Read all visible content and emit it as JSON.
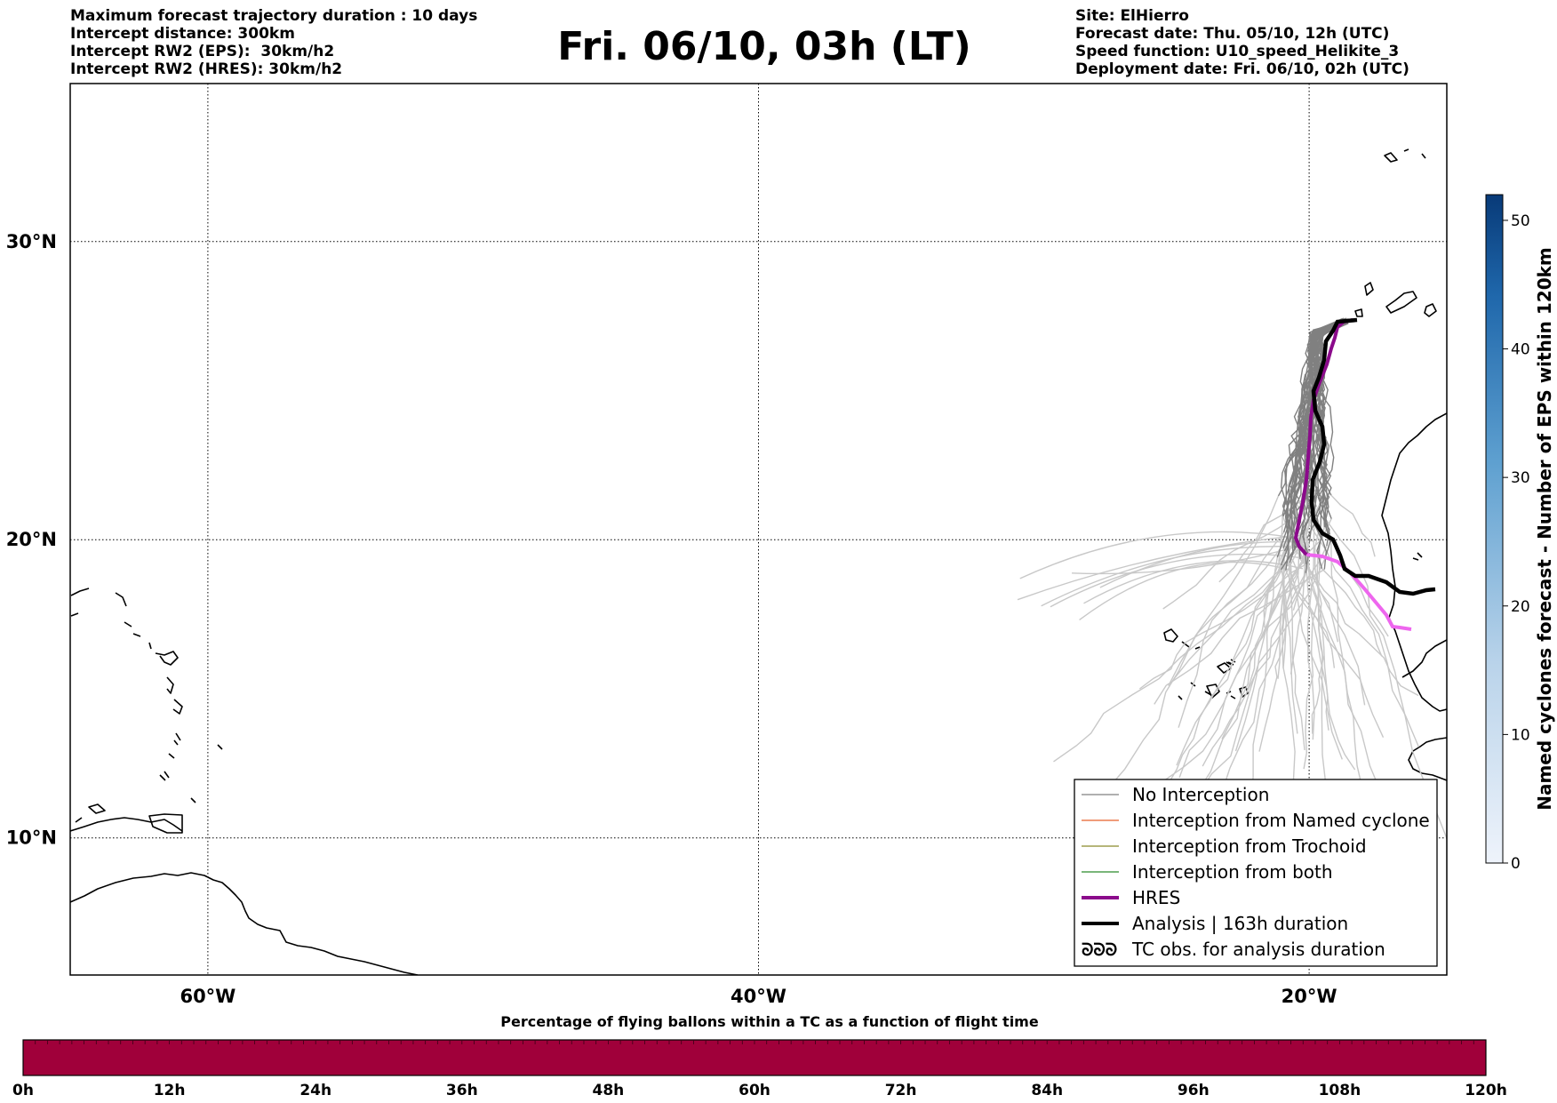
{
  "header_left": [
    "Maximum forecast trajectory duration : 10 days",
    "Intercept distance: 300km",
    "Intercept RW2 (EPS):  30km/h2",
    "Intercept RW2 (HRES): 30km/h2"
  ],
  "header_right": [
    "Site: ElHierro",
    "Forecast date: Thu. 05/10, 12h (UTC)",
    "Speed function: U10_speed_Helikite_3",
    "Deployment date: Fri. 06/10, 02h (UTC)"
  ],
  "title": "Fri. 06/10, 03h (LT)",
  "map": {
    "lat_labels": [
      {
        "text": "30°N",
        "lat": 30
      },
      {
        "text": "20°N",
        "lat": 20
      },
      {
        "text": "10°N",
        "lat": 10
      }
    ],
    "lon_labels": [
      {
        "text": "60°W",
        "lon": -60
      },
      {
        "text": "40°W",
        "lon": -40
      },
      {
        "text": "20°W",
        "lon": -20
      }
    ],
    "extent": {
      "lon_min": -65,
      "lon_max": -15,
      "lat_min": 5.4,
      "lat_max": 35.3
    },
    "grid": true,
    "colors": {
      "no_interception": "#808080",
      "no_interception_late": "#c8c8c8",
      "named_cyclone": "#e8622a",
      "trochoid": "#8a8a2a",
      "both": "#2a8a2a",
      "hres": "#8b0a8b",
      "hres_late": "#ee66ee",
      "analysis": "#000000"
    }
  },
  "legend": {
    "placement": "lower-right",
    "items": [
      {
        "label": "No Interception",
        "style": "thin",
        "color": "#808080"
      },
      {
        "label": "Interception from Named cyclone",
        "style": "thin",
        "color": "#e8622a"
      },
      {
        "label": "Interception from Trochoid",
        "style": "thin",
        "color": "#8a8a2a"
      },
      {
        "label": "Interception from both",
        "style": "thin",
        "color": "#2a8a2a"
      },
      {
        "label": "HRES",
        "style": "thick",
        "color": "#8b0a8b"
      },
      {
        "label": "Analysis | 163h duration",
        "style": "thick",
        "color": "#000000"
      },
      {
        "label": "TC obs. for analysis duration",
        "style": "symbol",
        "symbol": "ᘐᘐᘐ",
        "color": "#000000"
      }
    ]
  },
  "colorbar_right": {
    "label": "Named cyclones forecast - Number of EPS within 120km",
    "ticks": [
      "0",
      "10",
      "20",
      "30",
      "40",
      "50"
    ],
    "range": [
      0,
      52
    ],
    "color_low": "#e6eef8",
    "color_high": "#08306b"
  },
  "bottom_bar": {
    "title": "Percentage of flying ballons within a TC as a function of flight time",
    "ticks": [
      "0h",
      "12h",
      "24h",
      "36h",
      "48h",
      "60h",
      "72h",
      "84h",
      "96h",
      "108h",
      "120h"
    ],
    "color": "#a0003a",
    "segments": 120
  }
}
